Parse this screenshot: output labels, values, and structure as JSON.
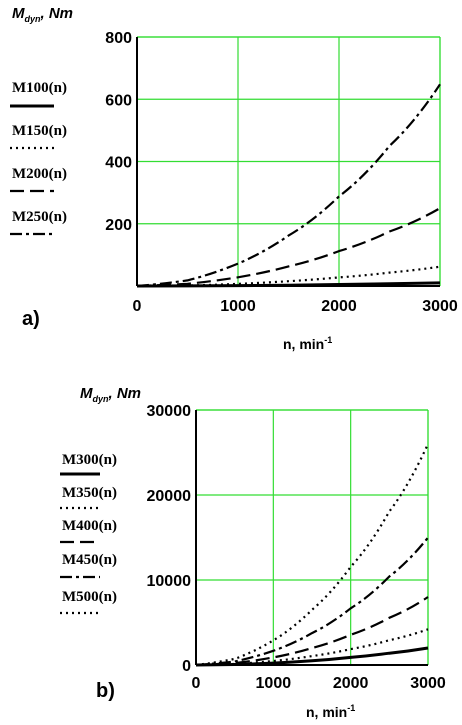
{
  "chart_data": [
    {
      "type": "line",
      "panel_label": "a)",
      "ylabel_main": "M",
      "ylabel_sub": "dyn",
      "ylabel_rest": ", Nm",
      "xlabel_main": "n, min",
      "xlabel_sup": "-1",
      "xlim": [
        0,
        3000
      ],
      "ylim": [
        0,
        800
      ],
      "xticks": [
        "0",
        "1000",
        "2000",
        "3000"
      ],
      "yticks": [
        "200",
        "400",
        "600",
        "800"
      ],
      "grid": true,
      "grid_color": "#33dd33",
      "legend_placement": "left",
      "x": [
        0,
        500,
        1000,
        1500,
        2000,
        2500,
        3000
      ],
      "series": [
        {
          "name": "M100(n)",
          "style": "solid",
          "values": [
            0,
            0.3,
            1.2,
            2.7,
            4.8,
            7.5,
            10
          ]
        },
        {
          "name": "M150(n)",
          "style": "dot",
          "values": [
            0,
            1.7,
            6.9,
            15.5,
            27.6,
            43.1,
            62
          ]
        },
        {
          "name": "M200(n)",
          "style": "dash",
          "values": [
            0,
            7,
            28,
            63,
            112,
            175,
            250
          ]
        },
        {
          "name": "M250(n)",
          "style": "dashdot",
          "values": [
            0,
            18,
            72,
            162,
            288,
            450,
            648
          ]
        }
      ]
    },
    {
      "type": "line",
      "panel_label": "b)",
      "ylabel_main": "M",
      "ylabel_sub": "dyn",
      "ylabel_rest": ", Nm",
      "xlabel_main": "n, min",
      "xlabel_sup": "-1",
      "xlim": [
        0,
        3000
      ],
      "ylim": [
        0,
        30000
      ],
      "xticks": [
        "0",
        "1000",
        "2000",
        "3000"
      ],
      "yticks": [
        "0",
        "10000",
        "20000",
        "30000"
      ],
      "grid": true,
      "grid_color": "#33dd33",
      "legend_placement": "left",
      "x": [
        0,
        500,
        1000,
        1500,
        2000,
        2500,
        3000
      ],
      "series": [
        {
          "name": "M300(n)",
          "style": "solid",
          "values": [
            0,
            56,
            222,
            500,
            889,
            1389,
            2000
          ]
        },
        {
          "name": "M350(n)",
          "style": "dot",
          "values": [
            0,
            117,
            467,
            1050,
            1867,
            2917,
            4200
          ]
        },
        {
          "name": "M400(n)",
          "style": "dash",
          "values": [
            0,
            222,
            889,
            2000,
            3556,
            5556,
            8000
          ]
        },
        {
          "name": "M450(n)",
          "style": "dashdot",
          "values": [
            0,
            417,
            1667,
            3750,
            6667,
            10417,
            15000
          ]
        },
        {
          "name": "M500(n)",
          "style": "dot",
          "values": [
            0,
            722,
            2889,
            6500,
            11556,
            18056,
            26000
          ]
        }
      ]
    }
  ]
}
